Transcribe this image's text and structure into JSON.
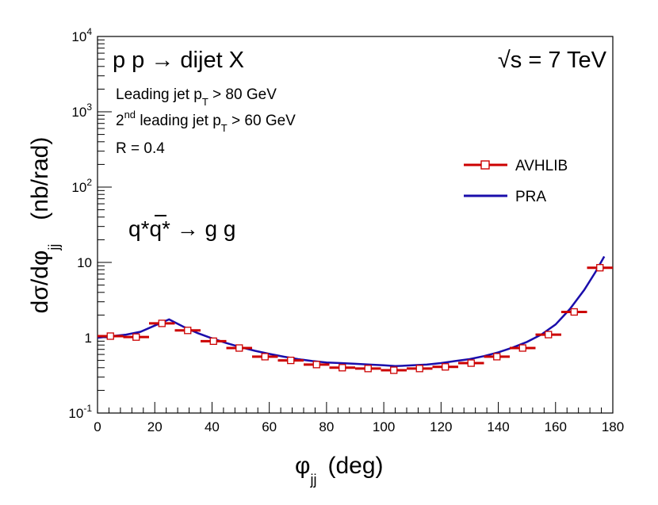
{
  "chart_data": {
    "type": "line",
    "title": "",
    "process": "p p → dijet X",
    "energy": "√s = 7 TeV",
    "cuts": {
      "leading_prefix": "Leading jet p",
      "leading_sub": "T",
      "leading_suffix": " > 80 GeV",
      "second_num": "2",
      "second_sup": "nd",
      "second_mid": " leading jet p",
      "second_sub": "T",
      "second_suffix": " > 60 GeV",
      "radius": "R = 0.4"
    },
    "subprocess": {
      "q1": "q*",
      "qbar": "q",
      "q2": "*",
      "arrow": " → g g"
    },
    "xlabel": {
      "main": "φ",
      "sub": "jj",
      "unit": "(deg)"
    },
    "ylabel": {
      "main": "dσ/dφ",
      "sub": "jj",
      "unit": "(nb/rad)"
    },
    "xlim": [
      0,
      180
    ],
    "ylim": [
      0.1,
      10000
    ],
    "yscale": "log",
    "xticks": [
      "0",
      "20",
      "40",
      "60",
      "80",
      "100",
      "120",
      "140",
      "160",
      "180"
    ],
    "yticks": [
      {
        "value": 0.1,
        "base": "10",
        "exp": "-1"
      },
      {
        "value": 1,
        "base": "1",
        "exp": ""
      },
      {
        "value": 10,
        "base": "10",
        "exp": ""
      },
      {
        "value": 100,
        "base": "10",
        "exp": "2"
      },
      {
        "value": 1000,
        "base": "10",
        "exp": "3"
      },
      {
        "value": 10000,
        "base": "10",
        "exp": "4"
      }
    ],
    "series": [
      {
        "name": "AVHLIB",
        "style": "histogram-markers",
        "color": "#cc0000",
        "bin_width": 9,
        "x": [
          4.5,
          13.5,
          22.5,
          31.5,
          40.5,
          49.5,
          58.5,
          67.5,
          76.5,
          85.5,
          94.5,
          103.5,
          112.5,
          121.5,
          130.5,
          139.5,
          148.5,
          157.5,
          166.5,
          175.5
        ],
        "values": [
          1.05,
          1.02,
          1.55,
          1.25,
          0.9,
          0.73,
          0.56,
          0.5,
          0.44,
          0.4,
          0.39,
          0.37,
          0.39,
          0.41,
          0.46,
          0.56,
          0.73,
          1.1,
          2.2,
          8.5
        ]
      },
      {
        "name": "PRA",
        "style": "line",
        "color": "#1a0dab",
        "x": [
          0,
          5,
          10,
          15,
          20,
          25,
          30,
          35,
          40,
          45,
          50,
          55,
          60,
          65,
          70,
          75,
          80,
          85,
          90,
          95,
          100,
          104,
          110,
          115,
          120,
          125,
          130,
          135,
          140,
          145,
          150,
          155,
          160,
          165,
          170,
          174,
          177
        ],
        "values": [
          1.0,
          1.05,
          1.1,
          1.2,
          1.45,
          1.75,
          1.4,
          1.15,
          0.98,
          0.85,
          0.75,
          0.67,
          0.61,
          0.56,
          0.52,
          0.49,
          0.47,
          0.46,
          0.45,
          0.44,
          0.43,
          0.42,
          0.43,
          0.44,
          0.46,
          0.49,
          0.52,
          0.57,
          0.64,
          0.74,
          0.88,
          1.1,
          1.5,
          2.4,
          4.3,
          7.5,
          12.0
        ]
      }
    ],
    "legend": {
      "position": "top-right",
      "entries": [
        "AVHLIB",
        "PRA"
      ]
    },
    "grid": false
  }
}
